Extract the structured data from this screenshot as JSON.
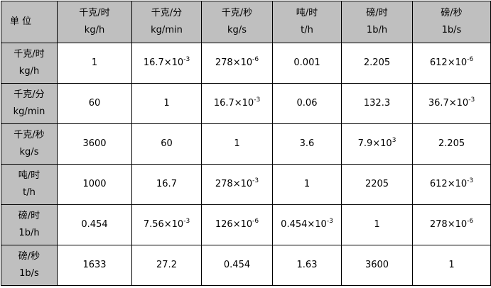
{
  "table": {
    "corner": "单 位",
    "columns": [
      {
        "name": "千克/时",
        "unit": "kg/h"
      },
      {
        "name": "千克/分",
        "unit": "kg/min"
      },
      {
        "name": "千克/秒",
        "unit": "kg/s"
      },
      {
        "name": "吨/时",
        "unit": "t/h"
      },
      {
        "name": "磅/时",
        "unit": "1b/h"
      },
      {
        "name": "磅/秒",
        "unit": "1b/s"
      }
    ],
    "rows": [
      {
        "name": "千克/时",
        "unit": "kg/h",
        "cells": [
          "1",
          {
            "base": "16.7×10",
            "exp": "-3"
          },
          {
            "base": "278×10",
            "exp": "-6"
          },
          "0.001",
          "2.205",
          {
            "base": "612×10",
            "exp": "-6"
          }
        ]
      },
      {
        "name": "千克/分",
        "unit": "kg/min",
        "cells": [
          "60",
          "1",
          {
            "base": "16.7×10",
            "exp": "-3"
          },
          "0.06",
          "132.3",
          {
            "base": "36.7×10",
            "exp": "-3"
          }
        ]
      },
      {
        "name": "千克/秒",
        "unit": "kg/s",
        "cells": [
          "3600",
          "60",
          "1",
          "3.6",
          {
            "base": "7.9×10",
            "exp": "3"
          },
          "2.205"
        ]
      },
      {
        "name": "吨/时",
        "unit": "t/h",
        "cells": [
          "1000",
          "16.7",
          {
            "base": "278×10",
            "exp": "-3"
          },
          "1",
          "2205",
          {
            "base": "612×10",
            "exp": "-3"
          }
        ]
      },
      {
        "name": "磅/时",
        "unit": "1b/h",
        "cells": [
          "0.454",
          {
            "base": "7.56×10",
            "exp": "-3"
          },
          {
            "base": "126×10",
            "exp": "-6"
          },
          {
            "base": "0.454×10",
            "exp": "-3"
          },
          "1",
          {
            "base": "278×10",
            "exp": "-6"
          }
        ]
      },
      {
        "name": "磅/秒",
        "unit": "1b/s",
        "cells": [
          "1633",
          "27.2",
          "0.454",
          "1.63",
          "3600",
          "1"
        ]
      }
    ]
  }
}
